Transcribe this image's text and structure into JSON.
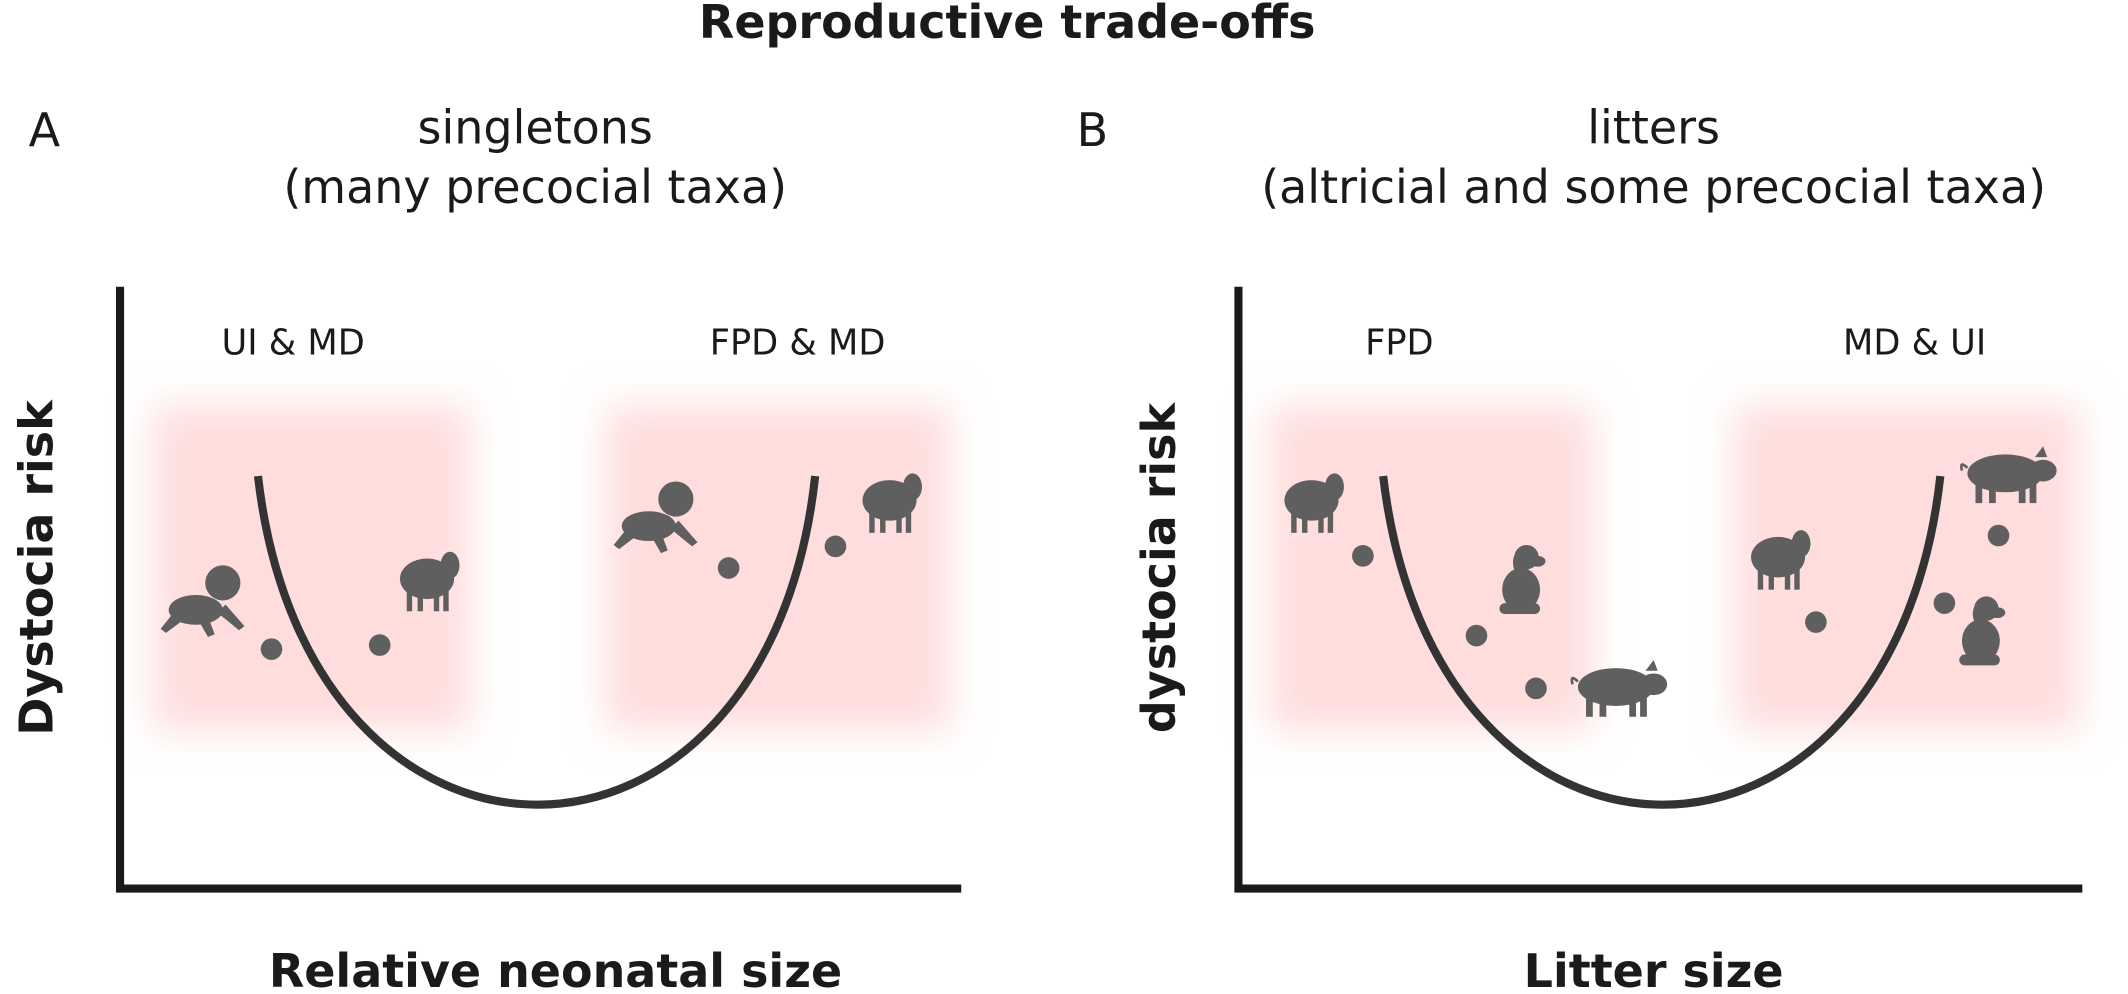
{
  "title": "Reproductive trade-offs",
  "panels": [
    {
      "letter": "A",
      "title_lines": [
        "singletons",
        "(many precocial taxa)"
      ],
      "region_labels": [
        "UI & MD",
        "FPD & MD"
      ],
      "y_label": "Dystocia risk",
      "x_label": "Relative neonatal size"
    },
    {
      "letter": "B",
      "title_lines": [
        "litters",
        "(altricial and some precocial taxa)"
      ],
      "region_labels": [
        "FPD",
        "MD & UI"
      ],
      "y_label": "dystocia risk",
      "x_label": "Litter size"
    }
  ]
}
